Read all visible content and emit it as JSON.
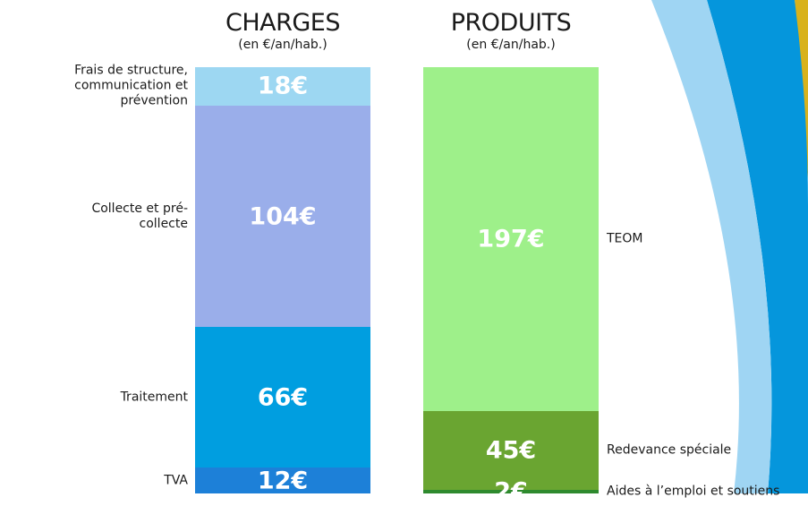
{
  "chart_data": [
    {
      "type": "stacked-bar",
      "title": "CHARGES",
      "subtitle": "(en €/an/hab.)",
      "series": [
        {
          "name": "Frais de structure, communication et prévention",
          "color": "#9dd7f2",
          "values": [
            18
          ],
          "value_labels": [
            "18€"
          ]
        },
        {
          "name": "Collecte et pré-collecte",
          "color": "#9aaeea",
          "values": [
            104
          ],
          "value_labels": [
            "104€"
          ]
        },
        {
          "name": "Traitement",
          "color": "#009ee0",
          "values": [
            66
          ],
          "value_labels": [
            "66€"
          ]
        },
        {
          "name": "TVA",
          "color": "#1d80d8",
          "values": [
            12
          ],
          "value_labels": [
            "12€"
          ]
        }
      ]
    },
    {
      "type": "stacked-bar",
      "title": "PRODUITS",
      "subtitle": "(en €/an/hab.)",
      "series": [
        {
          "name": "TEOM",
          "color": "#9ef08a",
          "values": [
            197
          ],
          "value_labels": [
            "197€"
          ]
        },
        {
          "name": "Redevance spéciale",
          "color": "#6aa531",
          "values": [
            45
          ],
          "value_labels": [
            "45€"
          ]
        },
        {
          "name": "Aides à l’emploi et soutiens",
          "color": "#2e8a2e",
          "values": [
            2
          ],
          "value_labels": [
            "2€"
          ]
        }
      ]
    }
  ]
}
